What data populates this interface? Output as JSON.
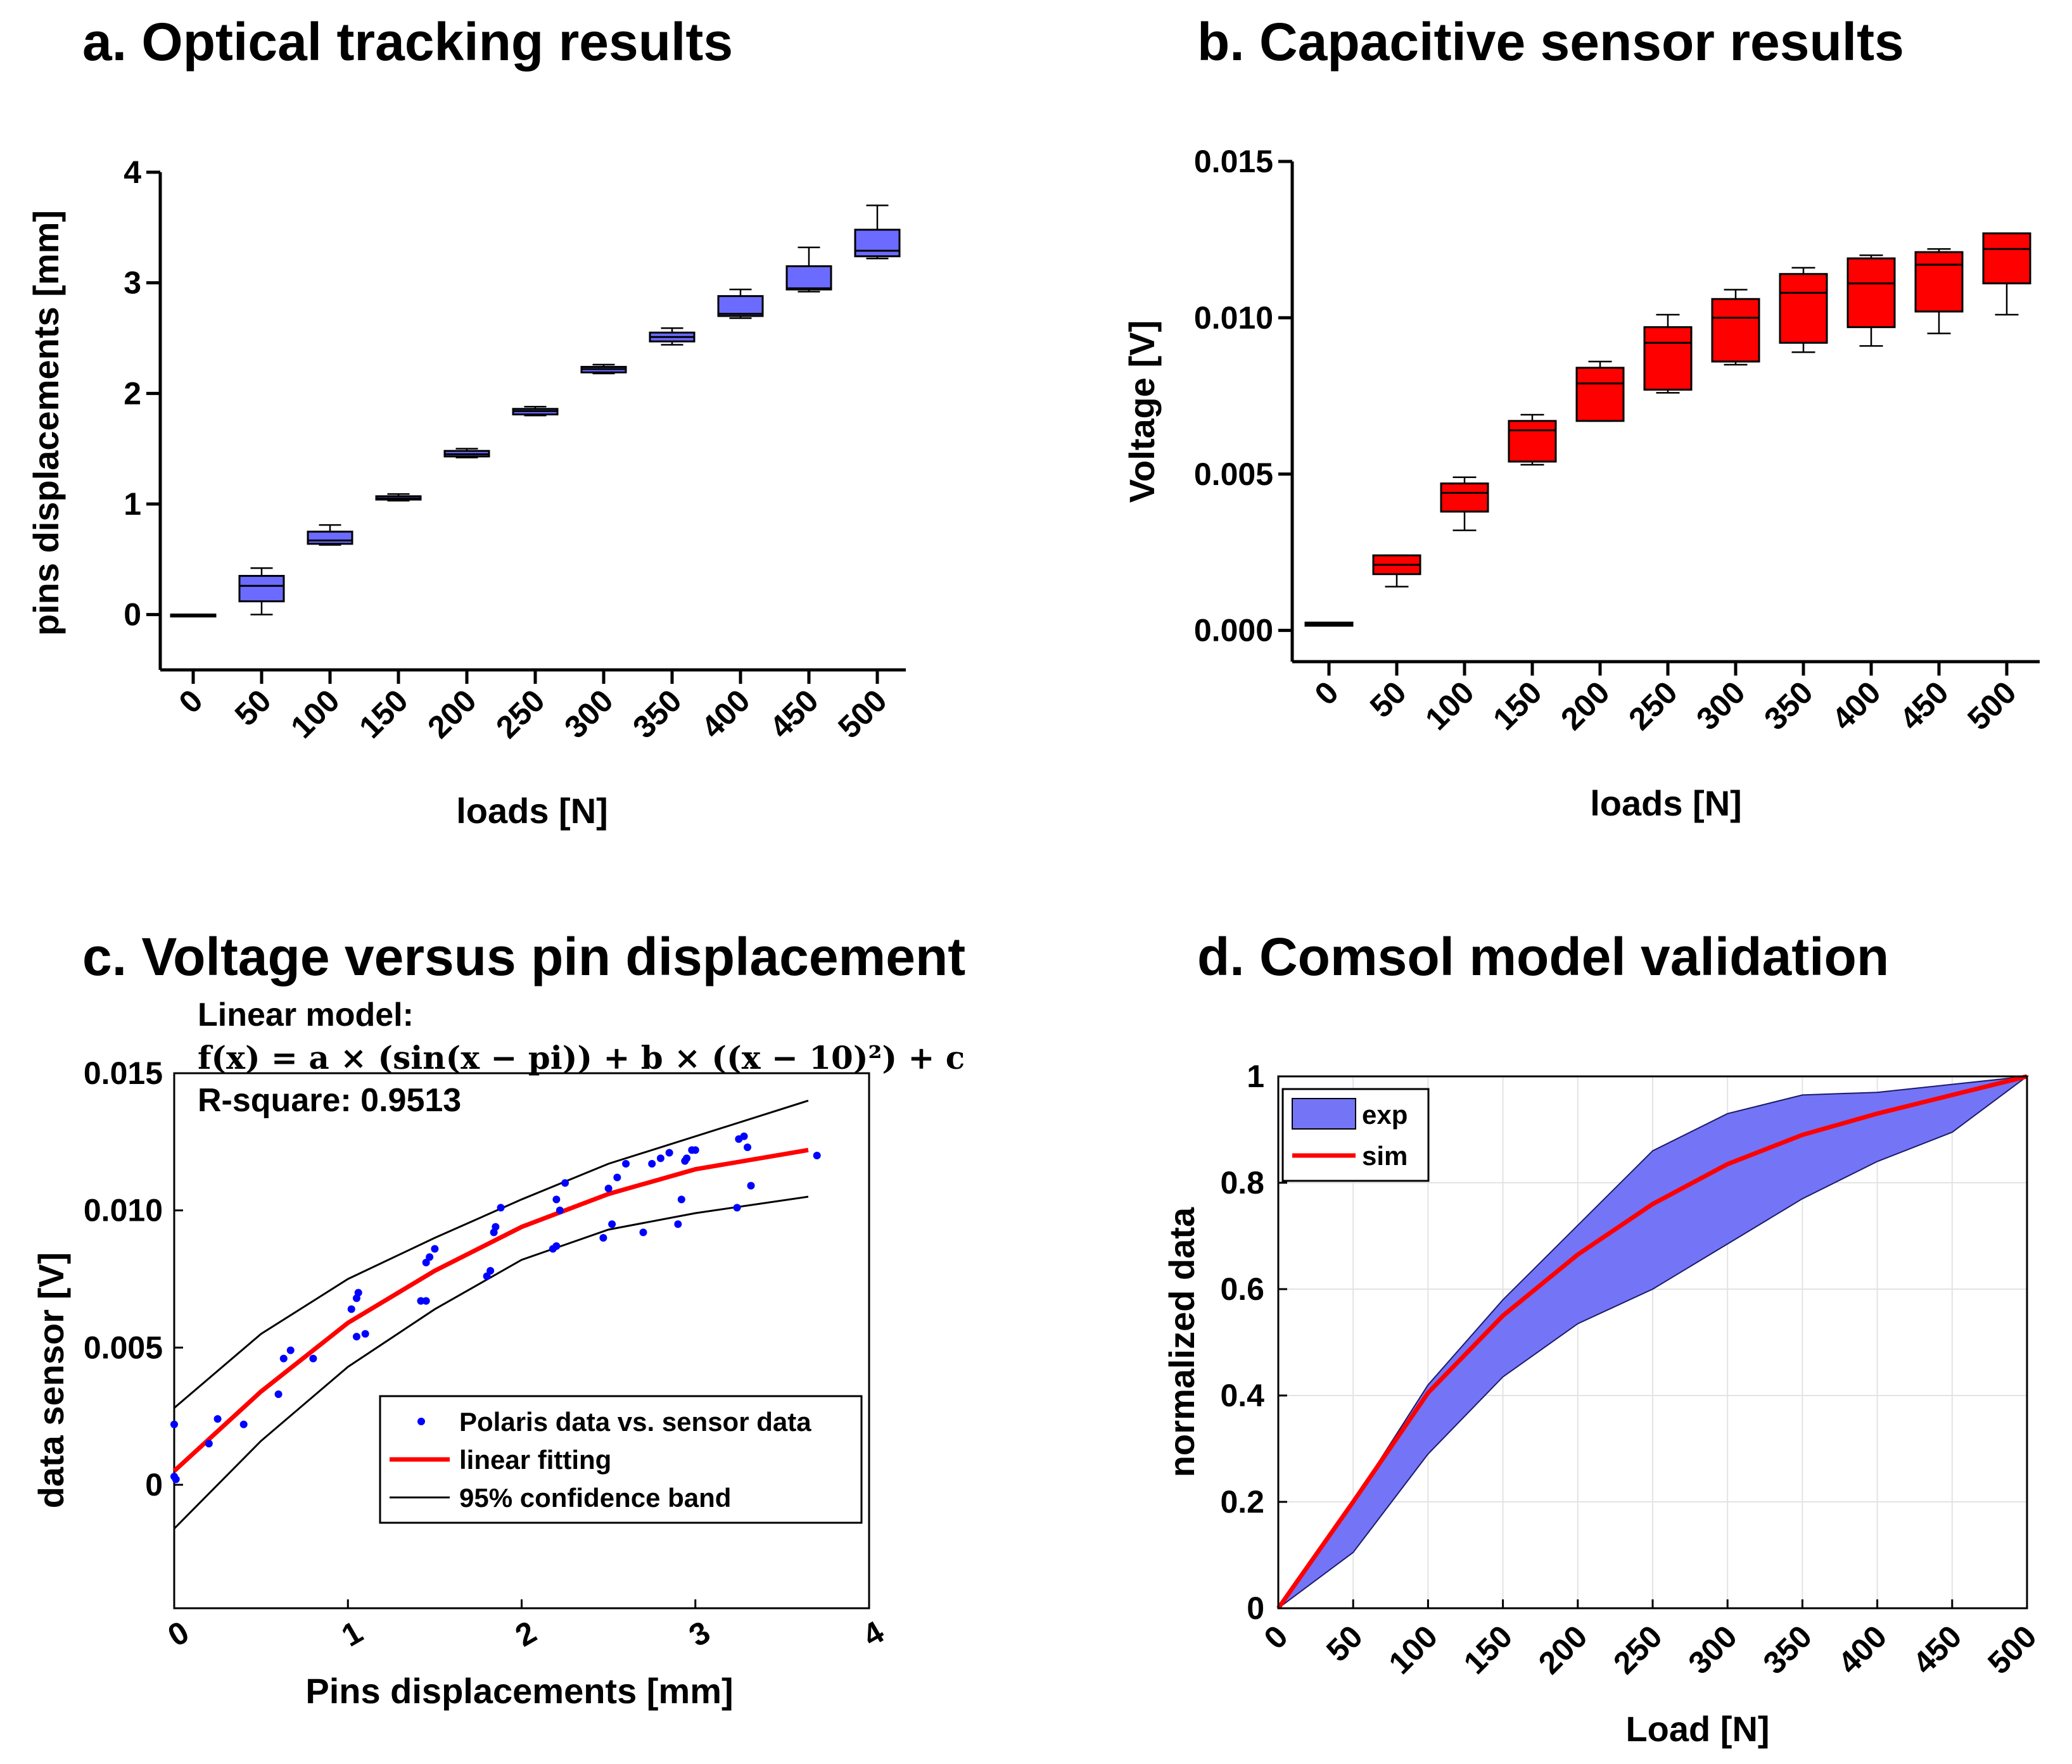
{
  "colors": {
    "box_blue": "#6b6bff",
    "box_red": "#ff0000",
    "fit_red": "#ff0000",
    "dots_blue": "#0000ff",
    "band_fill": "#7474f7",
    "black": "#000000",
    "grid": "#e3e3e3"
  },
  "chart_data": [
    {
      "panel": "a",
      "type": "box",
      "title": "a. Optical tracking results",
      "xlabel": "loads [N]",
      "ylabel": "pins displacements [mm]",
      "ylim": [
        -0.5,
        4
      ],
      "yticks": [
        "0",
        "1",
        "2",
        "3",
        "4"
      ],
      "categories": [
        "0",
        "50",
        "100",
        "150",
        "200",
        "250",
        "300",
        "350",
        "400",
        "450",
        "500"
      ],
      "boxes": [
        {
          "min": 0.0,
          "q1": 0.0,
          "median": 0.0,
          "q3": 0.0,
          "max": 0.0
        },
        {
          "min": 0.0,
          "q1": 0.12,
          "median": 0.26,
          "q3": 0.35,
          "max": 0.42
        },
        {
          "min": 0.63,
          "q1": 0.64,
          "median": 0.67,
          "q3": 0.75,
          "max": 0.81
        },
        {
          "min": 1.03,
          "q1": 1.04,
          "median": 1.05,
          "q3": 1.07,
          "max": 1.09
        },
        {
          "min": 1.42,
          "q1": 1.43,
          "median": 1.45,
          "q3": 1.48,
          "max": 1.5
        },
        {
          "min": 1.8,
          "q1": 1.81,
          "median": 1.84,
          "q3": 1.86,
          "max": 1.88
        },
        {
          "min": 2.18,
          "q1": 2.19,
          "median": 2.22,
          "q3": 2.24,
          "max": 2.26
        },
        {
          "min": 2.44,
          "q1": 2.47,
          "median": 2.51,
          "q3": 2.55,
          "max": 2.59
        },
        {
          "min": 2.68,
          "q1": 2.7,
          "median": 2.72,
          "q3": 2.88,
          "max": 2.94
        },
        {
          "min": 2.92,
          "q1": 2.94,
          "median": 2.95,
          "q3": 3.15,
          "max": 3.32
        },
        {
          "min": 3.22,
          "q1": 3.24,
          "median": 3.29,
          "q3": 3.48,
          "max": 3.7
        }
      ]
    },
    {
      "panel": "b",
      "type": "box",
      "title": "b. Capacitive sensor results",
      "xlabel": "loads [N]",
      "ylabel": "Voltage [V]",
      "ylim": [
        -0.001,
        0.015
      ],
      "yticks": [
        "0.000",
        "0.005",
        "0.010",
        "0.015"
      ],
      "categories": [
        "0",
        "50",
        "100",
        "150",
        "200",
        "250",
        "300",
        "350",
        "400",
        "450",
        "500"
      ],
      "boxes": [
        {
          "min": 0.00015,
          "q1": 0.00015,
          "median": 0.0002,
          "q3": 0.00025,
          "max": 0.00025
        },
        {
          "min": 0.0014,
          "q1": 0.0018,
          "median": 0.0021,
          "q3": 0.0024,
          "max": 0.0024
        },
        {
          "min": 0.0032,
          "q1": 0.0038,
          "median": 0.0044,
          "q3": 0.0047,
          "max": 0.0049
        },
        {
          "min": 0.0053,
          "q1": 0.0054,
          "median": 0.0064,
          "q3": 0.0067,
          "max": 0.0069
        },
        {
          "min": 0.0067,
          "q1": 0.0067,
          "median": 0.0079,
          "q3": 0.0084,
          "max": 0.0086
        },
        {
          "min": 0.0076,
          "q1": 0.0077,
          "median": 0.0092,
          "q3": 0.0097,
          "max": 0.0101
        },
        {
          "min": 0.0085,
          "q1": 0.0086,
          "median": 0.01,
          "q3": 0.0106,
          "max": 0.0109
        },
        {
          "min": 0.0089,
          "q1": 0.0092,
          "median": 0.0108,
          "q3": 0.0114,
          "max": 0.0116
        },
        {
          "min": 0.0091,
          "q1": 0.0097,
          "median": 0.0111,
          "q3": 0.0119,
          "max": 0.012
        },
        {
          "min": 0.0095,
          "q1": 0.0102,
          "median": 0.0117,
          "q3": 0.0121,
          "max": 0.0122
        },
        {
          "min": 0.0101,
          "q1": 0.0111,
          "median": 0.0122,
          "q3": 0.0127,
          "max": 0.0127
        }
      ]
    },
    {
      "panel": "c",
      "type": "scatter",
      "title": "c. Voltage versus pin displacement",
      "model_title": "Linear model:",
      "equation": "f(x) = a × (sin(x − pi))  + b  × ((x − 10)²)  + c",
      "rsquare": "R-square: 0.9513",
      "xlabel": "Pins displacements [mm]",
      "ylabel": "data sensor [V]",
      "xlim": [
        0,
        4
      ],
      "ylim": [
        -0.0045,
        0.015
      ],
      "xticks": [
        "0",
        "1",
        "2",
        "3",
        "4"
      ],
      "yticks": [
        "0",
        "0.005",
        "0.010",
        "0.015"
      ],
      "legend": [
        "Polaris data vs. sensor data",
        "linear fitting",
        "95% confidence band"
      ],
      "points": [
        [
          0.0,
          0.0022
        ],
        [
          0.0,
          0.0003
        ],
        [
          0.01,
          0.0002
        ],
        [
          0.2,
          0.0015
        ],
        [
          0.25,
          0.0024
        ],
        [
          0.4,
          0.0022
        ],
        [
          0.6,
          0.0033
        ],
        [
          0.63,
          0.0046
        ],
        [
          0.67,
          0.0049
        ],
        [
          0.8,
          0.0046
        ],
        [
          1.02,
          0.0064
        ],
        [
          1.05,
          0.0068
        ],
        [
          1.06,
          0.007
        ],
        [
          1.05,
          0.0054
        ],
        [
          1.1,
          0.0055
        ],
        [
          1.42,
          0.0067
        ],
        [
          1.45,
          0.0067
        ],
        [
          1.45,
          0.0081
        ],
        [
          1.47,
          0.0083
        ],
        [
          1.5,
          0.0086
        ],
        [
          1.8,
          0.0076
        ],
        [
          1.82,
          0.0078
        ],
        [
          1.84,
          0.0092
        ],
        [
          1.85,
          0.0094
        ],
        [
          1.88,
          0.0101
        ],
        [
          2.18,
          0.0086
        ],
        [
          2.2,
          0.0087
        ],
        [
          2.2,
          0.0104
        ],
        [
          2.22,
          0.01
        ],
        [
          2.25,
          0.011
        ],
        [
          2.47,
          0.009
        ],
        [
          2.52,
          0.0095
        ],
        [
          2.5,
          0.0108
        ],
        [
          2.55,
          0.0112
        ],
        [
          2.6,
          0.0117
        ],
        [
          2.7,
          0.0092
        ],
        [
          2.75,
          0.0117
        ],
        [
          2.8,
          0.0119
        ],
        [
          2.85,
          0.0121
        ],
        [
          2.9,
          0.0095
        ],
        [
          2.92,
          0.0104
        ],
        [
          2.94,
          0.0118
        ],
        [
          2.98,
          0.0122
        ],
        [
          2.95,
          0.0119
        ],
        [
          3.0,
          0.0122
        ],
        [
          3.24,
          0.0101
        ],
        [
          3.25,
          0.0126
        ],
        [
          3.28,
          0.0127
        ],
        [
          3.3,
          0.0123
        ],
        [
          3.32,
          0.0109
        ],
        [
          3.7,
          0.012
        ]
      ],
      "fit": [
        [
          0,
          0.0005
        ],
        [
          0.5,
          0.0034
        ],
        [
          1.0,
          0.0059
        ],
        [
          1.5,
          0.0078
        ],
        [
          2.0,
          0.0094
        ],
        [
          2.5,
          0.0106
        ],
        [
          3.0,
          0.0115
        ],
        [
          3.65,
          0.0122
        ]
      ],
      "band_upper": [
        [
          0,
          0.0028
        ],
        [
          0.5,
          0.0055
        ],
        [
          1.0,
          0.0075
        ],
        [
          1.5,
          0.009
        ],
        [
          2.0,
          0.0104
        ],
        [
          2.5,
          0.0117
        ],
        [
          3.0,
          0.0127
        ],
        [
          3.65,
          0.014
        ]
      ],
      "band_lower": [
        [
          0,
          -0.0016
        ],
        [
          0.5,
          0.0016
        ],
        [
          1.0,
          0.0043
        ],
        [
          1.5,
          0.0064
        ],
        [
          2.0,
          0.0082
        ],
        [
          2.5,
          0.0093
        ],
        [
          3.0,
          0.0099
        ],
        [
          3.65,
          0.0105
        ]
      ]
    },
    {
      "panel": "d",
      "type": "area",
      "title": "d. Comsol model validation",
      "xlabel": "Load [N]",
      "ylabel": "normalized data",
      "xlim": [
        0,
        500
      ],
      "ylim": [
        0,
        1
      ],
      "grid": true,
      "xticks": [
        "0",
        "50",
        "100",
        "150",
        "200",
        "250",
        "300",
        "350",
        "400",
        "450",
        "500"
      ],
      "yticks": [
        "0",
        "0.2",
        "0.4",
        "0.6",
        "0.8",
        "1"
      ],
      "legend": [
        "exp",
        "sim"
      ],
      "x": [
        0,
        50,
        100,
        150,
        200,
        250,
        300,
        350,
        400,
        450,
        500
      ],
      "exp_upper": [
        0,
        0.2,
        0.42,
        0.58,
        0.72,
        0.86,
        0.93,
        0.965,
        0.97,
        0.985,
        1.0
      ],
      "exp_lower": [
        0,
        0.105,
        0.29,
        0.435,
        0.535,
        0.6,
        0.685,
        0.77,
        0.84,
        0.895,
        1.0
      ],
      "sim": [
        0,
        0.2,
        0.405,
        0.55,
        0.665,
        0.76,
        0.835,
        0.89,
        0.93,
        0.965,
        1.0
      ]
    }
  ]
}
